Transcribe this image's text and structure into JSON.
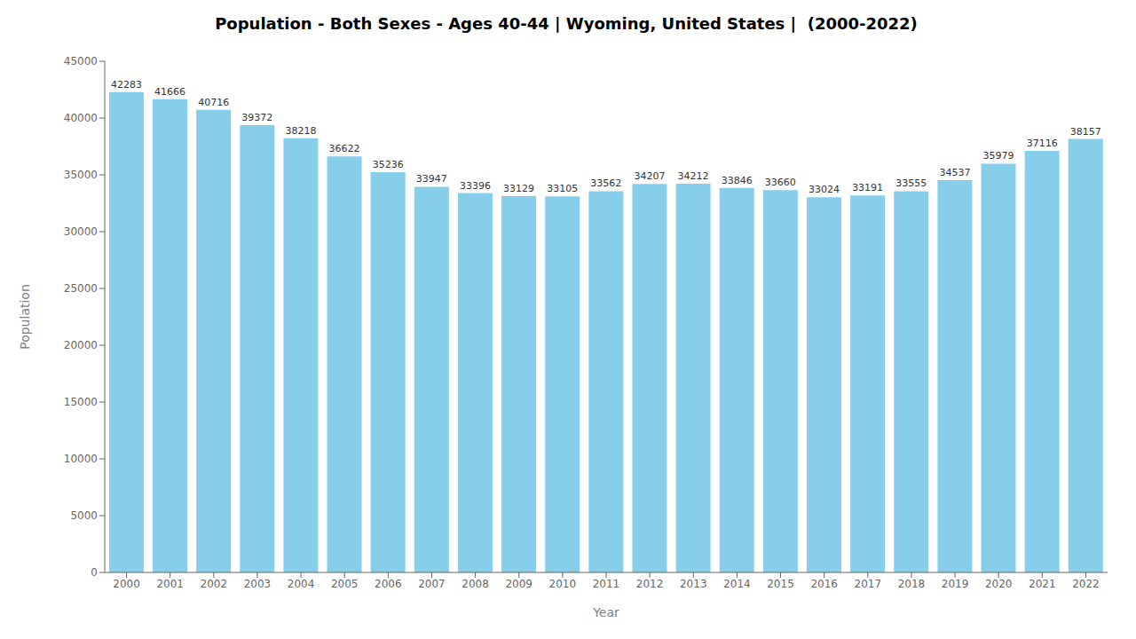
{
  "chart_data": {
    "type": "bar",
    "title": "Population - Both Sexes - Ages 40-44 | Wyoming, United States |  (2000-2022)",
    "xlabel": "Year",
    "ylabel": "Population",
    "categories": [
      "2000",
      "2001",
      "2002",
      "2003",
      "2004",
      "2005",
      "2006",
      "2007",
      "2008",
      "2009",
      "2010",
      "2011",
      "2012",
      "2013",
      "2014",
      "2015",
      "2016",
      "2017",
      "2018",
      "2019",
      "2020",
      "2021",
      "2022"
    ],
    "values": [
      42283,
      41666,
      40716,
      39372,
      38218,
      36622,
      35236,
      33947,
      33396,
      33129,
      33105,
      33562,
      34207,
      34212,
      33846,
      33660,
      33024,
      33191,
      33555,
      34537,
      35979,
      37116,
      38157
    ],
    "color": "#87CEEB",
    "ylim": [
      0,
      45000
    ],
    "yticks": [
      0,
      5000,
      10000,
      15000,
      20000,
      25000,
      30000,
      35000,
      40000,
      45000
    ],
    "grid": false,
    "data_labels": true
  }
}
